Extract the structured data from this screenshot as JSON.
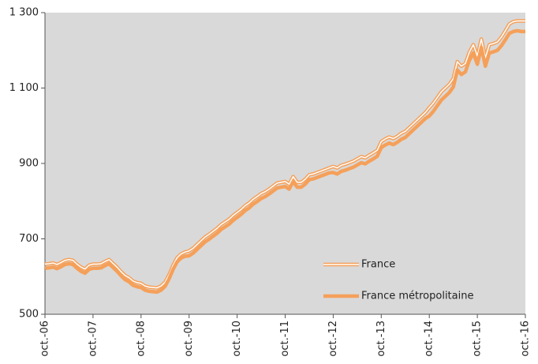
{
  "chart_data": {
    "type": "line",
    "categories": [
      "oct.-06",
      null,
      null,
      null,
      null,
      null,
      null,
      null,
      null,
      null,
      null,
      null,
      "oct.-07",
      null,
      null,
      null,
      null,
      null,
      null,
      null,
      null,
      null,
      null,
      null,
      "oct.-08",
      null,
      null,
      null,
      null,
      null,
      null,
      null,
      null,
      null,
      null,
      null,
      "oct.-09",
      null,
      null,
      null,
      null,
      null,
      null,
      null,
      null,
      null,
      null,
      null,
      "oct.-10",
      null,
      null,
      null,
      null,
      null,
      null,
      null,
      null,
      null,
      null,
      null,
      "oct.-11",
      null,
      null,
      null,
      null,
      null,
      null,
      null,
      null,
      null,
      null,
      null,
      "oct.-12",
      null,
      null,
      null,
      null,
      null,
      null,
      null,
      null,
      null,
      null,
      null,
      "oct.-13",
      null,
      null,
      null,
      null,
      null,
      null,
      null,
      null,
      null,
      null,
      null,
      "oct.-14",
      null,
      null,
      null,
      null,
      null,
      null,
      null,
      null,
      null,
      null,
      null,
      "oct.-15",
      null,
      null,
      null,
      null,
      null,
      null,
      null,
      null,
      null,
      null,
      null,
      "oct.-16"
    ],
    "series": [
      {
        "name": "France",
        "color": "#f5a05a",
        "style": "double",
        "values": [
          633,
          634,
          636,
          632,
          637,
          643,
          645,
          643,
          633,
          625,
          620,
          630,
          633,
          633,
          634,
          640,
          645,
          635,
          625,
          613,
          603,
          597,
          588,
          584,
          582,
          575,
          572,
          571,
          570,
          575,
          585,
          605,
          630,
          650,
          660,
          665,
          668,
          675,
          685,
          695,
          705,
          712,
          720,
          728,
          738,
          745,
          752,
          762,
          770,
          778,
          788,
          795,
          805,
          812,
          820,
          825,
          832,
          840,
          848,
          850,
          852,
          845,
          865,
          850,
          850,
          858,
          870,
          872,
          876,
          880,
          884,
          888,
          892,
          888,
          895,
          898,
          902,
          906,
          912,
          918,
          915,
          922,
          928,
          935,
          958,
          965,
          970,
          966,
          972,
          980,
          985,
          995,
          1005,
          1015,
          1025,
          1035,
          1048,
          1060,
          1075,
          1090,
          1100,
          1110,
          1125,
          1170,
          1158,
          1165,
          1195,
          1215,
          1185,
          1230,
          1180,
          1215,
          1218,
          1222,
          1235,
          1252,
          1270,
          1276,
          1278,
          1278,
          1278
        ]
      },
      {
        "name": "France métropolitaine",
        "color": "#f5a05a",
        "style": "solid",
        "values": [
          622,
          623,
          625,
          621,
          626,
          632,
          634,
          632,
          622,
          614,
          609,
          619,
          622,
          622,
          623,
          629,
          634,
          624,
          614,
          602,
          592,
          586,
          577,
          573,
          571,
          564,
          561,
          560,
          559,
          564,
          574,
          594,
          619,
          639,
          649,
          654,
          655,
          662,
          672,
          682,
          692,
          699,
          707,
          715,
          725,
          732,
          739,
          749,
          757,
          765,
          775,
          782,
          792,
          799,
          807,
          812,
          819,
          827,
          835,
          837,
          839,
          832,
          852,
          837,
          837,
          845,
          857,
          859,
          863,
          867,
          871,
          875,
          876,
          872,
          879,
          882,
          886,
          890,
          896,
          902,
          899,
          906,
          912,
          919,
          942,
          949,
          954,
          950,
          956,
          964,
          969,
          979,
          989,
          999,
          1009,
          1019,
          1026,
          1038,
          1053,
          1068,
          1078,
          1088,
          1103,
          1148,
          1136,
          1143,
          1173,
          1193,
          1163,
          1208,
          1158,
          1193,
          1196,
          1200,
          1212,
          1228,
          1245,
          1250,
          1252,
          1250,
          1250
        ]
      }
    ],
    "ylim": [
      500,
      1300
    ],
    "yticks": [
      500,
      700,
      900,
      {
        "value": 1100,
        "label": "1 100"
      },
      {
        "value": 1300,
        "label": "1 300"
      }
    ],
    "grid": false,
    "legend": "lower-right",
    "background": "#d9d9d9"
  }
}
